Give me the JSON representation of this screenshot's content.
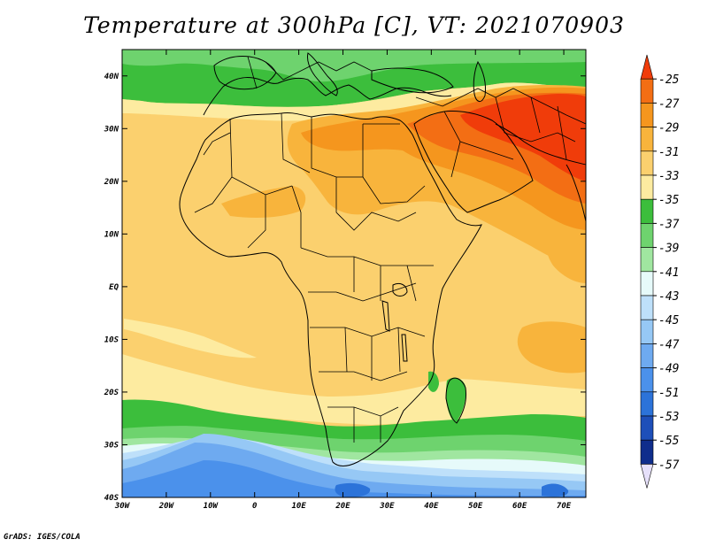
{
  "title": "Temperature at 300hPa [C], VT: 2021070903",
  "credit": "GrADS: IGES/COLA",
  "map": {
    "lon_range": [
      -30,
      75
    ],
    "lat_range": [
      -40,
      45
    ],
    "lon_ticks": [
      {
        "value": -30,
        "label": "30W"
      },
      {
        "value": -20,
        "label": "20W"
      },
      {
        "value": -10,
        "label": "10W"
      },
      {
        "value": 0,
        "label": "0"
      },
      {
        "value": 10,
        "label": "10E"
      },
      {
        "value": 20,
        "label": "20E"
      },
      {
        "value": 30,
        "label": "30E"
      },
      {
        "value": 40,
        "label": "40E"
      },
      {
        "value": 50,
        "label": "50E"
      },
      {
        "value": 60,
        "label": "60E"
      },
      {
        "value": 70,
        "label": "70E"
      }
    ],
    "lat_ticks": [
      {
        "value": 40,
        "label": "40N"
      },
      {
        "value": 30,
        "label": "30N"
      },
      {
        "value": 20,
        "label": "20N"
      },
      {
        "value": 10,
        "label": "10N"
      },
      {
        "value": 0,
        "label": "EQ"
      },
      {
        "value": -10,
        "label": "10S"
      },
      {
        "value": -20,
        "label": "20S"
      },
      {
        "value": -30,
        "label": "30S"
      },
      {
        "value": -40,
        "label": "40S"
      }
    ]
  },
  "colorbar": {
    "levels": [
      "-25",
      "-27",
      "-29",
      "-31",
      "-33",
      "-35",
      "-37",
      "-39",
      "-41",
      "-43",
      "-45",
      "-47",
      "-49",
      "-51",
      "-53",
      "-55",
      "-57"
    ],
    "colors": [
      "#f03c0a",
      "#f36e14",
      "#f5961e",
      "#f8b43c",
      "#fbd06e",
      "#fdeba0",
      "#3cbe3c",
      "#6ed36e",
      "#a0e6a0",
      "#e6fafa",
      "#bee0fa",
      "#96c8f5",
      "#6eaaf0",
      "#4b91eb",
      "#2c73d9",
      "#1e4fb9",
      "#0f2d8c",
      "#e6e0fa"
    ]
  },
  "colors": {
    "ocean_default": "#fbd06e",
    "land_border": "#000000"
  }
}
